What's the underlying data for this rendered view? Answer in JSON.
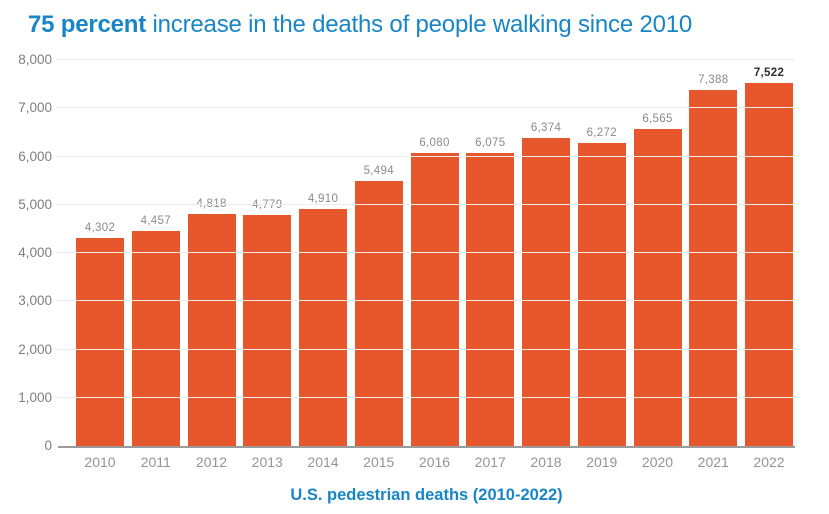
{
  "title": {
    "emphasis": "75 percent",
    "rest": " increase in the deaths of people walking since 2010"
  },
  "caption": "U.S. pedestrian deaths (2010-2022)",
  "colors": {
    "bar_orange": "#e8572c",
    "accent_blue": "#1886c6",
    "gridline_gray": "#ececec",
    "axis_line_gray": "#9b9b9b",
    "tick_label_gray": "#7e7e7e",
    "value_label_gray": "#8a8a8a",
    "emphasized_value_label": "#2e2e2e"
  },
  "chart_data": {
    "type": "bar",
    "title": "75 percent increase in the deaths of people walking since 2010",
    "xlabel": "U.S. pedestrian deaths (2010-2022)",
    "ylabel": "",
    "categories": [
      "2010",
      "2011",
      "2012",
      "2013",
      "2014",
      "2015",
      "2016",
      "2017",
      "2018",
      "2019",
      "2020",
      "2021",
      "2022"
    ],
    "values": [
      4302,
      4457,
      4818,
      4779,
      4910,
      5494,
      6080,
      6075,
      6374,
      6272,
      6565,
      7388,
      7522
    ],
    "value_labels": [
      "4,302",
      "4,457",
      "4,818",
      "4,779",
      "4,910",
      "5,494",
      "6,080",
      "6,075",
      "6,374",
      "6,272",
      "6,565",
      "7,388",
      "7,522"
    ],
    "emphasized_label_index": 12,
    "ylim": [
      0,
      8000
    ],
    "ytick_interval": 1000,
    "yticks": [
      "0",
      "1,000",
      "2,000",
      "3,000",
      "4,000",
      "5,000",
      "6,000",
      "7,000",
      "8,000"
    ],
    "grid": "horizontal",
    "legend": "none",
    "bar_color": "#e8572c"
  }
}
